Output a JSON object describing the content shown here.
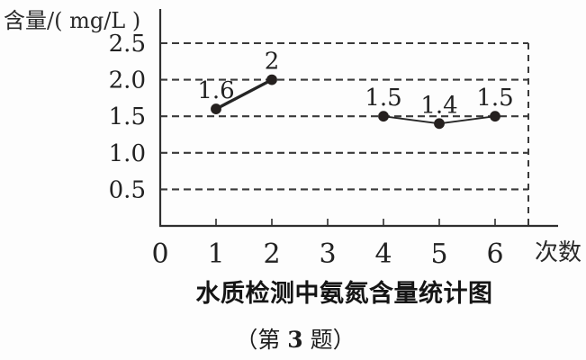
{
  "chart_data": {
    "type": "line",
    "title": "水质检测中氨氮含量统计图",
    "caption": {
      "prefix": "（第 ",
      "number": "3",
      "suffix": " 题）"
    },
    "ylabel": "含量/( mg/L )",
    "xlabel": "次数",
    "x_tick_labels": [
      "0",
      "1",
      "2",
      "3",
      "4",
      "5",
      "6"
    ],
    "x_tick_values": [
      0,
      1,
      2,
      3,
      4,
      5,
      6
    ],
    "y_tick_labels": [
      "0.5",
      "1.0",
      "1.5",
      "2.0",
      "2.5"
    ],
    "y_tick_values": [
      0.5,
      1.0,
      1.5,
      2.0,
      2.5
    ],
    "xlim": [
      0,
      6.6
    ],
    "ylim": [
      0,
      2.5
    ],
    "grid": "horizontal-dashed",
    "legend": "none",
    "series": [
      {
        "name": "tests-1-2",
        "x": [
          1,
          2
        ],
        "y": [
          1.6,
          2.0
        ],
        "labels": [
          "1.6",
          "2"
        ]
      },
      {
        "name": "tests-4-6",
        "x": [
          4,
          5,
          6
        ],
        "y": [
          1.5,
          1.4,
          1.5
        ],
        "labels": [
          "1.5",
          "1.4",
          "1.5"
        ]
      }
    ],
    "colors": {
      "axis": "#2f2f2f",
      "grid": "#3a3a3a",
      "line": "#252525",
      "point": "#25201f",
      "text": "#222222"
    }
  }
}
